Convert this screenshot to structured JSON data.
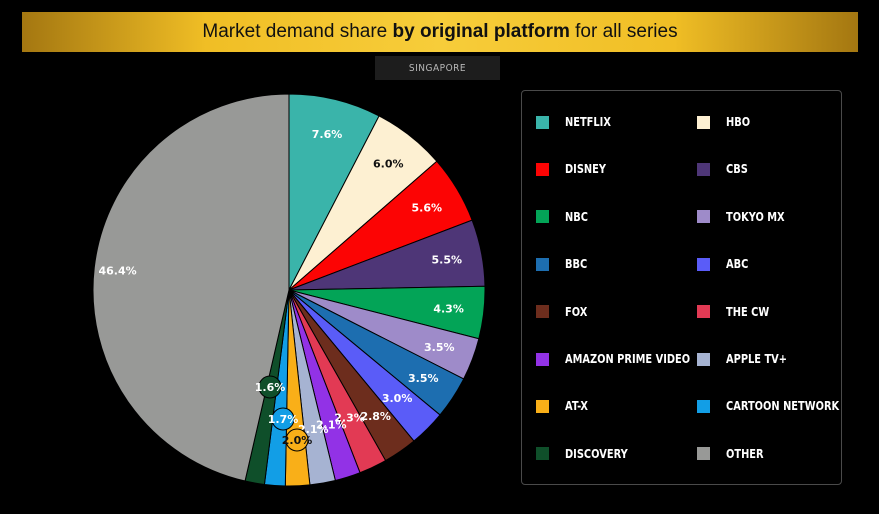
{
  "title": {
    "prefix": "Market demand share ",
    "bold": "by original platform",
    "suffix": " for all series"
  },
  "subtitle": "SINGAPORE",
  "chart_data": {
    "type": "pie",
    "title": "Market demand share by original platform for all series",
    "subtitle": "SINGAPORE",
    "legend_position": "right",
    "slices": [
      {
        "name": "NETFLIX",
        "value": 7.6,
        "color": "#3ab4aa",
        "label": "7.6%"
      },
      {
        "name": "HBO",
        "value": 6.0,
        "color": "#fdf0d2",
        "label": "6.0%"
      },
      {
        "name": "DISNEY",
        "value": 5.6,
        "color": "#fc0404",
        "label": "5.6%"
      },
      {
        "name": "CBS",
        "value": 5.5,
        "color": "#4e3677",
        "label": "5.5%"
      },
      {
        "name": "NBC",
        "value": 4.3,
        "color": "#03a457",
        "label": "4.3%"
      },
      {
        "name": "TOKYO MX",
        "value": 3.5,
        "color": "#9e8bc9",
        "label": "3.5%"
      },
      {
        "name": "BBC",
        "value": 3.5,
        "color": "#1d6eb0",
        "label": "3.5%"
      },
      {
        "name": "ABC",
        "value": 3.0,
        "color": "#5a5cf8",
        "label": "3.0%"
      },
      {
        "name": "FOX",
        "value": 2.8,
        "color": "#6d2d1d",
        "label": "2.8%"
      },
      {
        "name": "THE CW",
        "value": 2.3,
        "color": "#e23a54",
        "label": "2.3%"
      },
      {
        "name": "AMAZON PRIME VIDEO",
        "value": 2.1,
        "color": "#9232e6",
        "label": "2.1%"
      },
      {
        "name": "APPLE TV+",
        "value": 2.1,
        "color": "#a6b3d2",
        "label": "2.1%"
      },
      {
        "name": "AT-X",
        "value": 2.0,
        "color": "#f9af18",
        "label": "2.0%"
      },
      {
        "name": "CARTOON NETWORK",
        "value": 1.7,
        "color": "#129ee6",
        "label": "1.7%"
      },
      {
        "name": "DISCOVERY",
        "value": 1.6,
        "color": "#0f4f2a",
        "label": "1.6%"
      },
      {
        "name": "OTHER",
        "value": 46.4,
        "color": "#989997",
        "label": "46.4%"
      }
    ]
  },
  "legend": {
    "items": [
      {
        "label": "NETFLIX",
        "color": "#3ab4aa"
      },
      {
        "label": "HBO",
        "color": "#fdf0d2"
      },
      {
        "label": "DISNEY",
        "color": "#fc0404"
      },
      {
        "label": "CBS",
        "color": "#4e3677"
      },
      {
        "label": "NBC",
        "color": "#03a457"
      },
      {
        "label": "TOKYO MX",
        "color": "#9e8bc9"
      },
      {
        "label": "BBC",
        "color": "#1d6eb0"
      },
      {
        "label": "ABC",
        "color": "#5a5cf8"
      },
      {
        "label": "FOX",
        "color": "#6d2d1d"
      },
      {
        "label": "THE CW",
        "color": "#e23a54"
      },
      {
        "label": "AMAZON PRIME VIDEO",
        "color": "#9232e6"
      },
      {
        "label": "APPLE TV+",
        "color": "#a6b3d2"
      },
      {
        "label": "AT-X",
        "color": "#f9af18"
      },
      {
        "label": "CARTOON NETWORK",
        "color": "#129ee6"
      },
      {
        "label": "DISCOVERY",
        "color": "#0f4f2a"
      },
      {
        "label": "OTHER",
        "color": "#989997"
      }
    ]
  }
}
